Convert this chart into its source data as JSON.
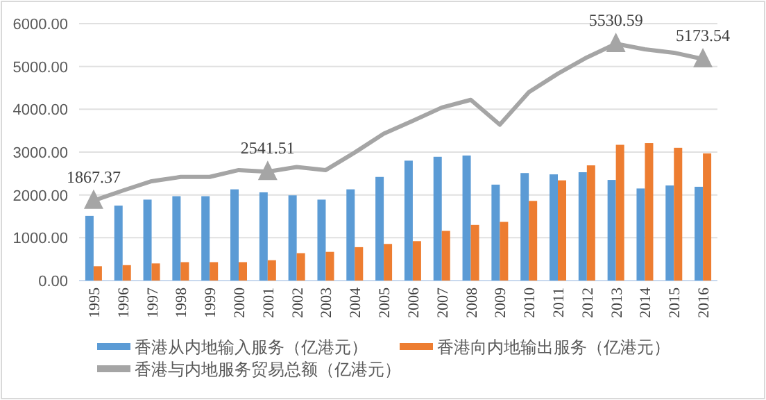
{
  "chart_data": {
    "type": "bar",
    "categories": [
      "1995",
      "1996",
      "1997",
      "1998",
      "1999",
      "2000",
      "2001",
      "2002",
      "2003",
      "2004",
      "2005",
      "2006",
      "2007",
      "2008",
      "2009",
      "2010",
      "2011",
      "2012",
      "2013",
      "2014",
      "2015",
      "2016"
    ],
    "series": [
      {
        "name": "香港从内地输入服务（亿港元）",
        "color": "#5b9bd5",
        "values": [
          1510,
          1750,
          1890,
          1970,
          1970,
          2130,
          2060,
          1990,
          1890,
          2130,
          2420,
          2800,
          2890,
          2920,
          2240,
          2510,
          2480,
          2530,
          2350,
          2150,
          2220,
          2190
        ]
      },
      {
        "name": "香港向内地输出服务（亿港元）",
        "color": "#ed7d31",
        "values": [
          335,
          360,
          400,
          430,
          430,
          430,
          475,
          640,
          670,
          780,
          855,
          920,
          1160,
          1300,
          1370,
          1860,
          2340,
          2690,
          3170,
          3210,
          3100,
          2970
        ]
      },
      {
        "name": "香港与内地服务贸易总额（亿港元）",
        "type": "line",
        "color": "#a5a5a5",
        "values": [
          1867.37,
          2100,
          2320,
          2420,
          2420,
          2580,
          2541.51,
          2650,
          2580,
          2990,
          3430,
          3730,
          4040,
          4220,
          3640,
          4400,
          4830,
          5210,
          5530.59,
          5400,
          5320,
          5173.54
        ]
      }
    ],
    "ylim": [
      0,
      6000
    ],
    "yticks": [
      {
        "value": 0,
        "label": "0.00"
      },
      {
        "value": 1000,
        "label": "1000.00"
      },
      {
        "value": 2000,
        "label": "2000.00"
      },
      {
        "value": 3000,
        "label": "3000.00"
      },
      {
        "value": 4000,
        "label": "4000.00"
      },
      {
        "value": 5000,
        "label": "5000.00"
      },
      {
        "value": 6000,
        "label": "6000.00"
      }
    ],
    "grid": "y",
    "legend": "bottom",
    "annotations": [
      {
        "text": "1867.37",
        "x": "1995",
        "y": 1867.37
      },
      {
        "text": "2541.51",
        "x": "2001",
        "y": 2541.51
      },
      {
        "text": "5530.59",
        "x": "2013",
        "y": 5530.59
      },
      {
        "text": "5173.54",
        "x": "2016",
        "y": 5173.54
      }
    ]
  }
}
